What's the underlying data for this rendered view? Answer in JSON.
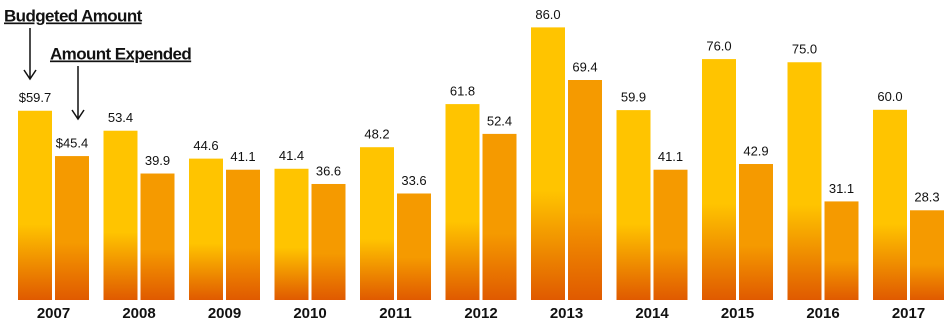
{
  "chart_data": {
    "type": "bar",
    "categories": [
      "2007",
      "2008",
      "2009",
      "2010",
      "2011",
      "2012",
      "2013",
      "2014",
      "2015",
      "2016",
      "2017"
    ],
    "series": [
      {
        "name": "Budgeted Amount",
        "color": "#ffc400",
        "values": [
          59.7,
          53.4,
          44.6,
          41.4,
          48.2,
          61.8,
          86.0,
          59.9,
          76.0,
          75.0,
          60.0
        ],
        "value_labels": [
          "$59.7",
          "53.4",
          "44.6",
          "41.4",
          "48.2",
          "61.8",
          "86.0",
          "59.9",
          "76.0",
          "75.0",
          "60.0"
        ]
      },
      {
        "name": "Amount Expended",
        "color": "#f59a00",
        "values": [
          45.4,
          39.9,
          41.1,
          36.6,
          33.6,
          52.4,
          69.4,
          41.1,
          42.9,
          31.1,
          28.3
        ],
        "value_labels": [
          "$45.4",
          "39.9",
          "41.1",
          "36.6",
          "33.6",
          "52.4",
          "69.4",
          "41.1",
          "42.9",
          "31.1",
          "28.3"
        ]
      }
    ]
  }
}
